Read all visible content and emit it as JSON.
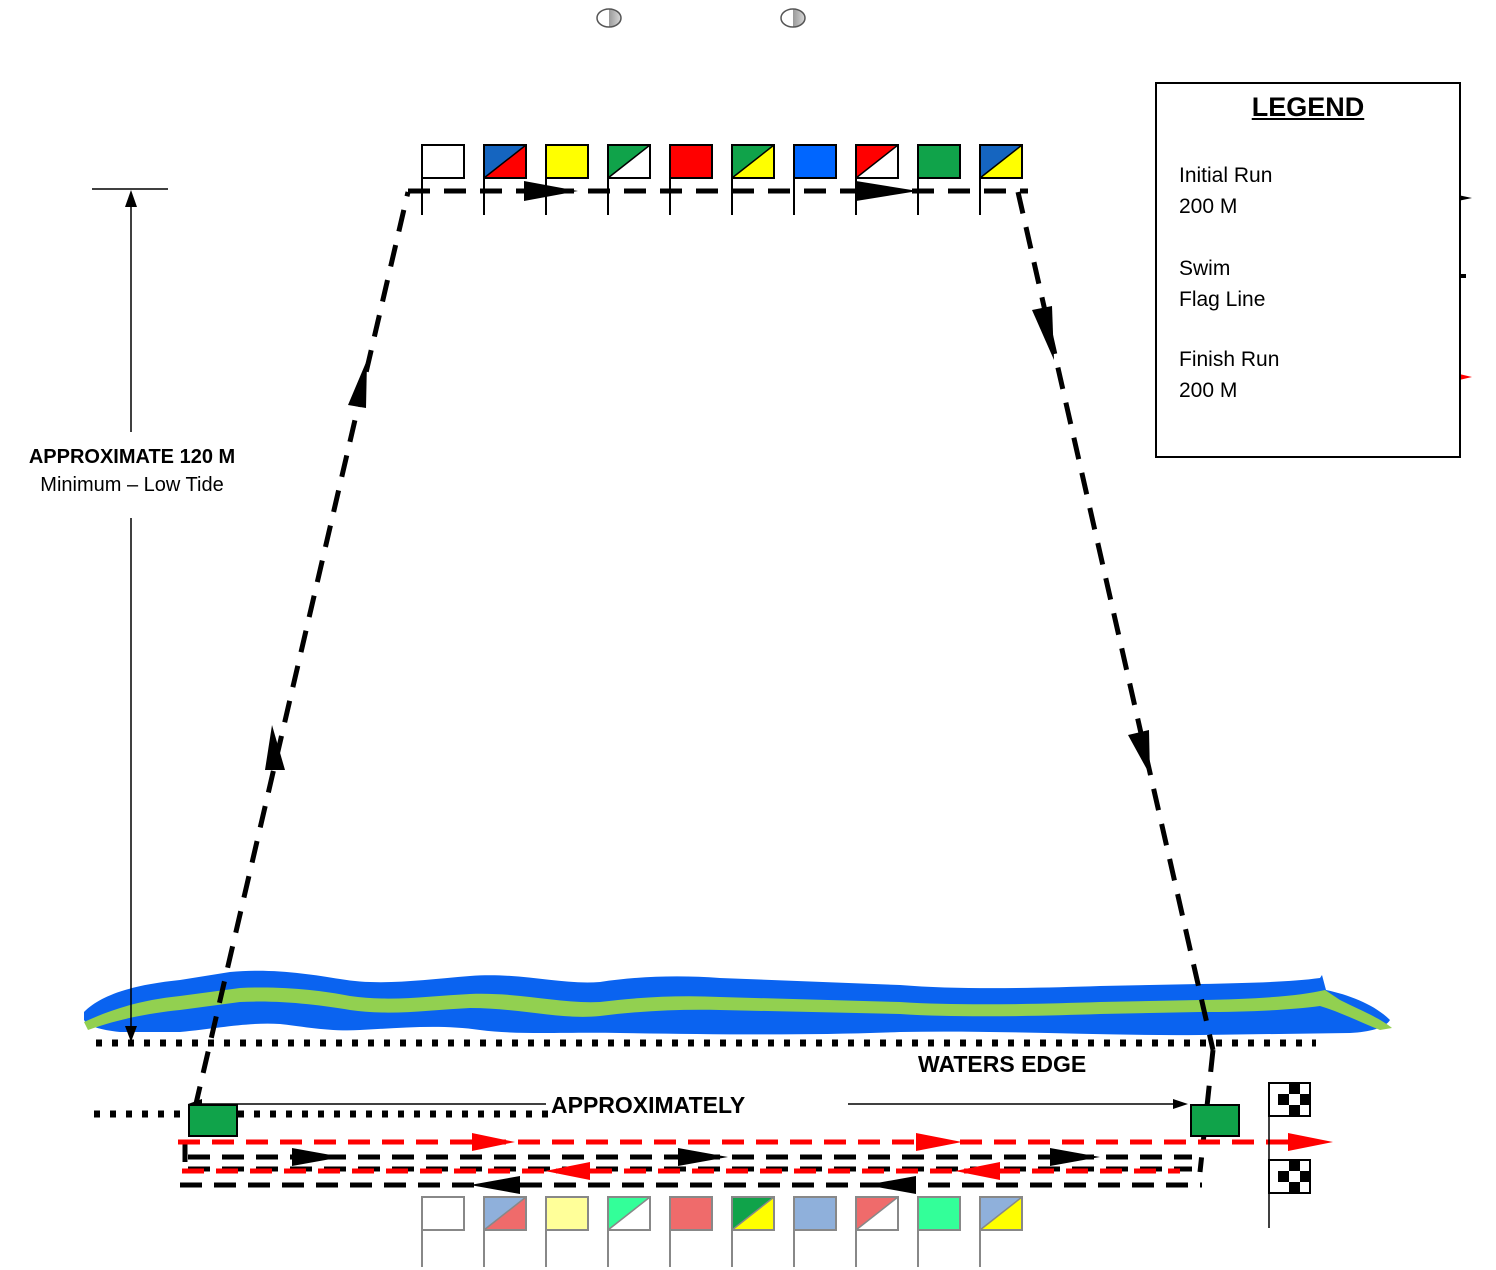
{
  "height_label": {
    "main": "APPROXIMATE 120 M",
    "sub": "Minimum – Low Tide"
  },
  "waters_edge_label": "WATERS EDGE",
  "width_label": "APPROXIMATELY",
  "legend": {
    "title": "LEGEND",
    "items": [
      {
        "label_line1": "Initial Run",
        "label_line2": "200 M",
        "style": "black-dashed-arrow",
        "color": "#000000"
      },
      {
        "label_line1": "Swim",
        "label_line2": "Flag Line",
        "style": "black-solid-line",
        "color": "#000000"
      },
      {
        "label_line1": "Finish Run",
        "label_line2": "200 M",
        "style": "red-dashed-arrow",
        "color": "#ff0000"
      }
    ]
  },
  "colors": {
    "water_blue": "#0a63f0",
    "water_green": "#92d050",
    "red_path": "#ff0000",
    "black_path": "#000000",
    "marker_green": "#10a34a"
  },
  "top_flags": [
    {
      "icon": "white-flag",
      "fill": "#ffffff"
    },
    {
      "icon": "blue-red-diagonal-flag",
      "top": "#1565c0",
      "bottom": "#ff0000"
    },
    {
      "icon": "yellow-flag",
      "fill": "#ffff00"
    },
    {
      "icon": "green-white-diagonal-flag",
      "top": "#10a34a",
      "bottom": "#ffffff"
    },
    {
      "icon": "red-flag",
      "fill": "#ff0000"
    },
    {
      "icon": "green-yellow-diagonal-flag",
      "top": "#10a34a",
      "bottom": "#ffff00"
    },
    {
      "icon": "blue-flag",
      "fill": "#0066ff"
    },
    {
      "icon": "red-white-diagonal-flag",
      "top": "#ff0000",
      "bottom": "#ffffff"
    },
    {
      "icon": "green-flag",
      "fill": "#10a34a"
    },
    {
      "icon": "blue-yellow-diagonal-flag",
      "top": "#1565c0",
      "bottom": "#ffff00"
    }
  ],
  "bottom_flags": [
    {
      "icon": "white-flag",
      "fill": "#ffffff"
    },
    {
      "icon": "blue-red-diagonal-flag",
      "top": "#8fb0db",
      "bottom": "#ef6b6b"
    },
    {
      "icon": "yellow-flag",
      "fill": "#ffff99"
    },
    {
      "icon": "green-white-diagonal-flag",
      "top": "#33ff99",
      "bottom": "#ffffff"
    },
    {
      "icon": "red-flag",
      "fill": "#ef6b6b"
    },
    {
      "icon": "green-yellow-diagonal-flag",
      "top": "#10a34a",
      "bottom": "#ffff00"
    },
    {
      "icon": "blue-flag",
      "fill": "#8fb0db"
    },
    {
      "icon": "red-white-diagonal-flag",
      "top": "#ef6b6b",
      "bottom": "#ffffff"
    },
    {
      "icon": "green-flag",
      "fill": "#33ff99"
    },
    {
      "icon": "blue-yellow-diagonal-flag",
      "top": "#8fb0db",
      "bottom": "#ffff00"
    }
  ]
}
